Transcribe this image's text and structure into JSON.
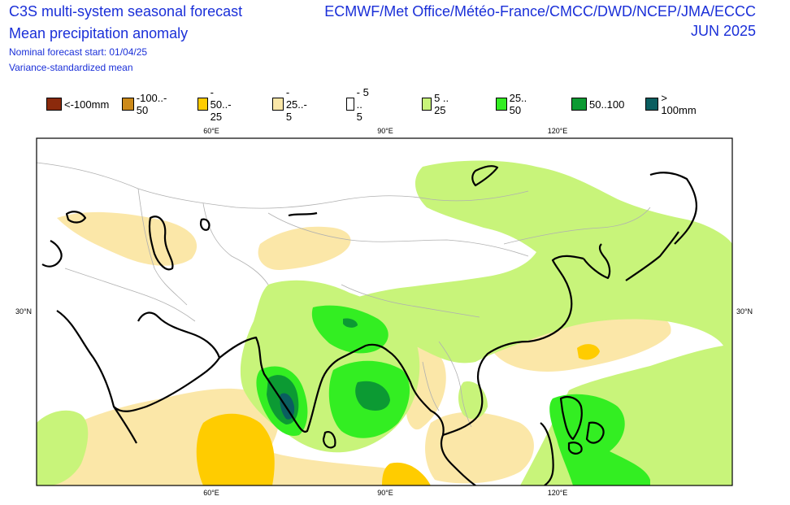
{
  "header": {
    "title_line1": "C3S multi-system seasonal forecast",
    "title_line2": "Mean precipitation anomaly",
    "subtitle_line1": "Nominal forecast start: 01/04/25",
    "subtitle_line2": "Variance-standardized mean",
    "centres": "ECMWF/Met Office/Météo-France/CMCC/DWD/NCEP/JMA/ECCC",
    "valid_month": "JUN 2025"
  },
  "legend": [
    {
      "label": "<-100mm",
      "color": "#8b2a0c"
    },
    {
      "label": "-100..- 50",
      "color": "#cc8a1a"
    },
    {
      "label": "- 50..- 25",
      "color": "#ffcc00"
    },
    {
      "label": "- 25..- 5",
      "color": "#fbe7a8"
    },
    {
      "label": "- 5 .. 5",
      "color": "#ffffff"
    },
    {
      "label": "5 .. 25",
      "color": "#c8f47a"
    },
    {
      "label": "25.. 50",
      "color": "#33ee22"
    },
    {
      "label": "50..100",
      "color": "#0c9a33"
    },
    {
      "label": "> 100mm",
      "color": "#0a5e60"
    }
  ],
  "map": {
    "lon_ticks": [
      "60°E",
      "90°E",
      "120°E"
    ],
    "lat_ticks": [
      "30°N"
    ]
  }
}
